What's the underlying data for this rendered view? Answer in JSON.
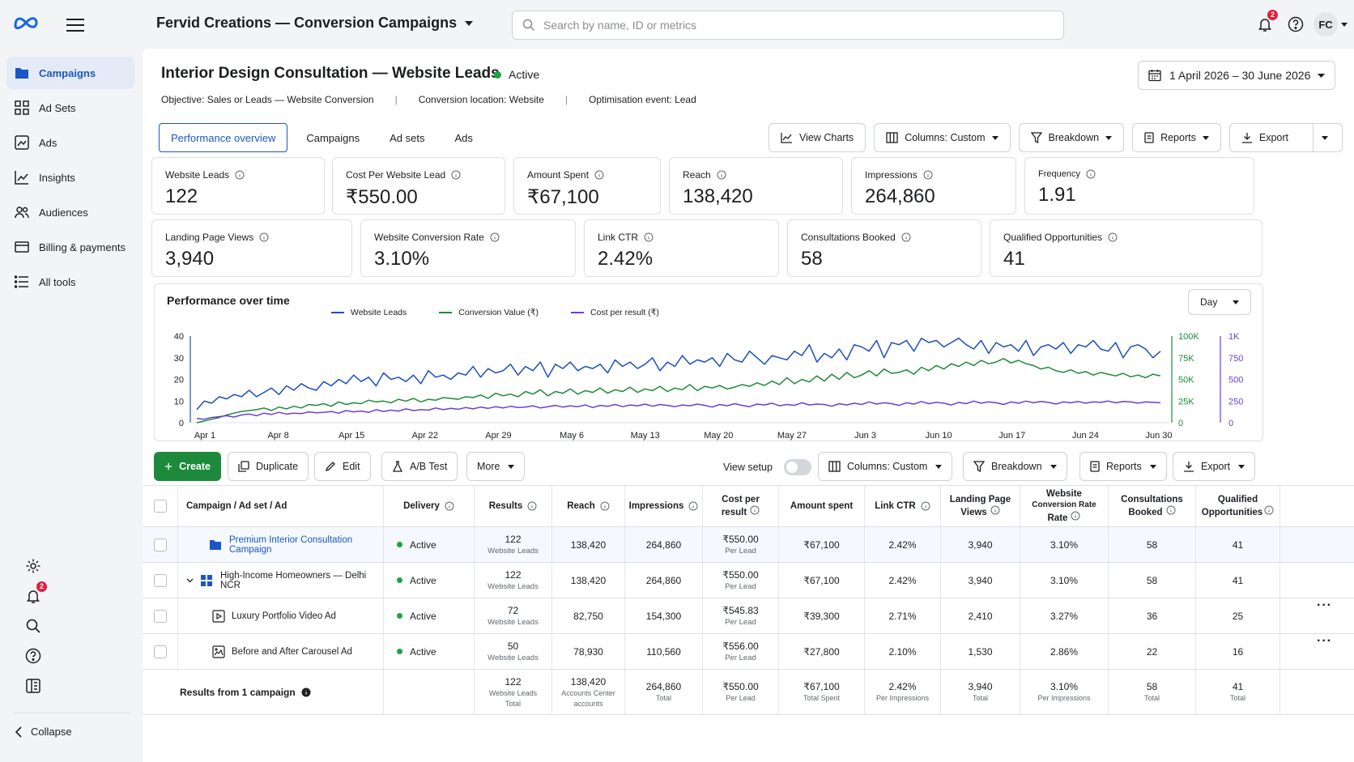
{
  "sidebar": {
    "items": [
      {
        "label": "Campaigns",
        "icon": "folder-icon"
      },
      {
        "label": "Ad Sets",
        "icon": "grid-icon"
      },
      {
        "label": "Ads",
        "icon": "ad-image-icon"
      },
      {
        "label": "Insights",
        "icon": "chart-line-icon"
      },
      {
        "label": "Audiences",
        "icon": "people-icon"
      },
      {
        "label": "Billing & payments",
        "icon": "billing-icon"
      },
      {
        "label": "All tools",
        "icon": "list-icon"
      }
    ],
    "notification_badge": "2",
    "collapse_label": "Collapse"
  },
  "header": {
    "account_title": "Fervid Creations — Conversion Campaigns",
    "search_placeholder": "Search by name, ID or metrics",
    "notification_badge": "2",
    "avatar_initials": "FC"
  },
  "campaign": {
    "title": "Interior Design Consultation — Website Leads",
    "status": "Active",
    "date_range": "1 April 2026 – 30 June 2026",
    "objective": "Objective: Sales or Leads — Website Conversion",
    "conversion_location": "Conversion location: Website",
    "optimisation_event": "Optimisation event: Lead"
  },
  "tabs": [
    "Performance overview",
    "Campaigns",
    "Ad sets",
    "Ads"
  ],
  "toolbar": {
    "view_charts": "View Charts",
    "columns": "Columns: Custom",
    "breakdown": "Breakdown",
    "reports": "Reports",
    "export": "Export"
  },
  "metrics_row1": [
    {
      "label": "Website Leads",
      "value": "122"
    },
    {
      "label": "Cost Per Website Lead",
      "value": "₹550.00"
    },
    {
      "label": "Amount Spent",
      "value": "₹67,100"
    },
    {
      "label": "Reach",
      "value": "138,420"
    },
    {
      "label": "Impressions",
      "value": "264,860"
    },
    {
      "label": "Frequency",
      "value": "1.91"
    }
  ],
  "metrics_row2": [
    {
      "label": "Landing Page Views",
      "value": "3,940"
    },
    {
      "label": "Website Conversion Rate",
      "value": "3.10%"
    },
    {
      "label": "Link CTR",
      "value": "2.42%"
    },
    {
      "label": "Consultations Booked",
      "value": "58"
    },
    {
      "label": "Qualified Opportunities",
      "value": "41"
    }
  ],
  "chart_data": {
    "type": "line",
    "title": "Performance over time",
    "granularity": "Day",
    "x_tick_labels": [
      "Apr 1",
      "Apr 8",
      "Apr 15",
      "Apr 22",
      "Apr 29",
      "May 6",
      "May 13",
      "May 20",
      "May 27",
      "Jun 3",
      "Jun 10",
      "Jun 17",
      "Jun 24",
      "Jun 30"
    ],
    "y_left": {
      "ticks": [
        "0",
        "10",
        "20",
        "30",
        "40"
      ],
      "range": [
        0,
        40
      ]
    },
    "y_right1": {
      "ticks": [
        "0",
        "25K",
        "50K",
        "75K",
        "100K"
      ],
      "range": [
        0,
        100000
      ]
    },
    "y_right2": {
      "ticks": [
        "0",
        "250",
        "500",
        "750",
        "1K"
      ],
      "range": [
        0,
        1000
      ]
    },
    "series": [
      {
        "name": "Website Leads",
        "color": "#1d4fbf",
        "axis": "left",
        "values": [
          6,
          10,
          9,
          12,
          11,
          13,
          12,
          15,
          12,
          14,
          16,
          13,
          17,
          15,
          18,
          16,
          15,
          19,
          17,
          20,
          18,
          22,
          19,
          21,
          17,
          23,
          20,
          21,
          19,
          22,
          18,
          24,
          21,
          22,
          20,
          23,
          22,
          26,
          21,
          25,
          23,
          24,
          27,
          22,
          26,
          24,
          28,
          21,
          27,
          25,
          28,
          24,
          26,
          25,
          27,
          23,
          29,
          26,
          28,
          25,
          27,
          30,
          24,
          28,
          26,
          31,
          27,
          29,
          28,
          30,
          26,
          32,
          29,
          28,
          33,
          30,
          27,
          31,
          30,
          29,
          33,
          31,
          36,
          28,
          32,
          30,
          34,
          29,
          36,
          35,
          33,
          38,
          30,
          37,
          36,
          38,
          33,
          39,
          37,
          38,
          35,
          37,
          39,
          36,
          34,
          38,
          32,
          37,
          35,
          36,
          33,
          38,
          31,
          35,
          36,
          34,
          37,
          32,
          36,
          35,
          38,
          34,
          33,
          37,
          30,
          35,
          36,
          34,
          30,
          33
        ]
      },
      {
        "name": "Conversion Value (₹)",
        "color": "#1e8a38",
        "axis": "right1",
        "values": [
          0,
          2000,
          4000,
          6000,
          9000,
          11000,
          13000,
          14000,
          15000,
          17000,
          14000,
          18000,
          16000,
          19000,
          17000,
          21000,
          20000,
          22000,
          19000,
          24000,
          21000,
          23000,
          22000,
          26000,
          24000,
          25000,
          23000,
          27000,
          25000,
          28000,
          24000,
          27000,
          26000,
          29000,
          28000,
          27000,
          30000,
          29000,
          32000,
          28000,
          34000,
          31000,
          33000,
          30000,
          36000,
          33000,
          38000,
          31000,
          36000,
          34000,
          39000,
          33000,
          37000,
          35000,
          40000,
          34000,
          38000,
          36000,
          41000,
          35000,
          39000,
          37000,
          42000,
          36000,
          40000,
          38000,
          44000,
          37000,
          42000,
          40000,
          43000,
          39000,
          41000,
          44000,
          42000,
          46000,
          43000,
          48000,
          44000,
          52000,
          45000,
          50000,
          47000,
          54000,
          48000,
          56000,
          50000,
          58000,
          52000,
          55000,
          60000,
          54000,
          62000,
          57000,
          58000,
          61000,
          56000,
          64000,
          60000,
          66000,
          62000,
          68000,
          65000,
          70000,
          66000,
          72000,
          68000,
          70000,
          74000,
          69000,
          72000,
          68000,
          66000,
          62000,
          64000,
          60000,
          58000,
          61000,
          57000,
          59000,
          55000,
          58000,
          56000,
          54000,
          57000,
          53000,
          55000,
          52000,
          56000,
          54000
        ]
      },
      {
        "name": "Cost per result (₹)",
        "color": "#6b3fd4",
        "axis": "right2",
        "values": [
          50,
          40,
          60,
          70,
          80,
          65,
          90,
          100,
          80,
          110,
          95,
          120,
          100,
          110,
          105,
          125,
          115,
          120,
          130,
          110,
          140,
          125,
          135,
          120,
          150,
          130,
          145,
          135,
          160,
          140,
          150,
          145,
          170,
          150,
          165,
          155,
          175,
          160,
          180,
          165,
          185,
          170,
          190,
          175,
          180,
          195,
          170,
          185,
          200,
          180,
          195,
          185,
          205,
          175,
          200,
          190,
          210,
          185,
          205,
          195,
          215,
          190,
          210,
          200,
          185,
          205,
          195,
          215,
          200,
          180,
          210,
          195,
          220,
          200,
          185,
          215,
          205,
          225,
          195,
          210,
          200,
          230,
          205,
          215,
          210,
          190,
          220,
          205,
          225,
          210,
          240,
          215,
          230,
          220,
          200,
          230,
          215,
          245,
          220,
          235,
          225,
          205,
          235,
          220,
          250,
          225,
          240,
          230,
          210,
          240,
          225,
          250,
          230,
          245,
          235,
          215,
          240,
          230,
          245,
          225,
          240,
          235,
          250,
          230,
          245,
          240,
          225,
          240,
          235,
          230
        ]
      }
    ]
  },
  "actions": {
    "create": "Create",
    "duplicate": "Duplicate",
    "edit": "Edit",
    "ab_test": "A/B Test",
    "more": "More",
    "view_setup": "View setup",
    "columns": "Columns: Custom",
    "breakdown": "Breakdown",
    "reports": "Reports",
    "export": "Export"
  },
  "table": {
    "headers": {
      "name": "Campaign / Ad set / Ad",
      "delivery": "Delivery",
      "results": "Results",
      "reach": "Reach",
      "impressions": "Impressions",
      "cpr_1": "Cost per",
      "cpr_2": "result",
      "spent": "Amount spent",
      "ctr": "Link CTR",
      "lpv_1": "Landing Page",
      "lpv_2": "Views",
      "wcr_1": "Website",
      "wcr_2": "Conversion Rate",
      "wcr_3": "Rate",
      "cb_1": "Consultations",
      "cb_2": "Booked",
      "qo_1": "Qualified",
      "qo_2": "Opportunities"
    },
    "rows": [
      {
        "name": "Premium Interior Consultation Campaign",
        "delivery": "Active",
        "results": "122",
        "results_sub": "Website Leads",
        "reach": "138,420",
        "impressions": "264,860",
        "cpr": "₹550.00",
        "cpr_sub": "Per Lead",
        "spent": "₹67,100",
        "ctr": "2.42%",
        "lpv": "3,940",
        "wcr": "3.10%",
        "cb": "58",
        "qo": "41"
      },
      {
        "name": "High-Income Homeowners — Delhi NCR",
        "delivery": "Active",
        "results": "122",
        "results_sub": "Website Leads",
        "reach": "138,420",
        "impressions": "264,860",
        "cpr": "₹550.00",
        "cpr_sub": "Per Lead",
        "spent": "₹67,100",
        "ctr": "2.42%",
        "lpv": "3,940",
        "wcr": "3.10%",
        "cb": "58",
        "qo": "41"
      },
      {
        "name": "Luxury Portfolio Video Ad",
        "delivery": "Active",
        "results": "72",
        "results_sub": "Website Leads",
        "reach": "82,750",
        "impressions": "154,300",
        "cpr": "₹545.83",
        "cpr_sub": "Per Lead",
        "spent": "₹39,300",
        "ctr": "2.71%",
        "lpv": "2,410",
        "wcr": "3.27%",
        "cb": "36",
        "qo": "25"
      },
      {
        "name": "Before and After Carousel Ad",
        "delivery": "Active",
        "results": "50",
        "results_sub": "Website Leads",
        "reach": "78,930",
        "impressions": "110,560",
        "cpr": "₹556.00",
        "cpr_sub": "Per Lead",
        "spent": "₹27,800",
        "ctr": "2.10%",
        "lpv": "1,530",
        "wcr": "2.86%",
        "cb": "22",
        "qo": "16"
      }
    ],
    "footer": {
      "label": "Results from 1 campaign",
      "results": "122",
      "results_sub1": "Website Leads",
      "results_sub2": "Total",
      "reach": "138,420",
      "reach_sub1": "Accounts Center",
      "reach_sub2": "accounts",
      "impressions": "264,860",
      "impressions_sub": "Total",
      "cpr": "₹550.00",
      "cpr_sub": "Per Lead",
      "spent": "₹67,100",
      "spent_sub": "Total Spent",
      "ctr": "2.42%",
      "ctr_sub": "Per Impressions",
      "lpv": "3,940",
      "lpv_sub": "Total",
      "wcr": "3.10%",
      "wcr_sub": "Per Impressions",
      "cb": "58",
      "cb_sub": "Total",
      "qo": "41",
      "qo_sub": "Total"
    }
  }
}
